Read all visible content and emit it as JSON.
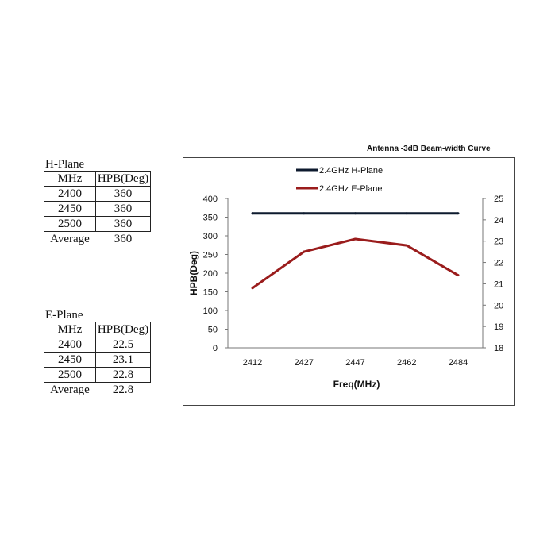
{
  "h_plane": {
    "title": "H-Plane",
    "headers": [
      "MHz",
      "HPB(Deg)"
    ],
    "rows": [
      [
        "2400",
        "360"
      ],
      [
        "2450",
        "360"
      ],
      [
        "2500",
        "360"
      ]
    ],
    "average_label": "Average",
    "average_value": "360"
  },
  "e_plane": {
    "title": "E-Plane",
    "headers": [
      "MHz",
      "HPB(Deg)"
    ],
    "rows": [
      [
        "2400",
        "22.5"
      ],
      [
        "2450",
        "23.1"
      ],
      [
        "2500",
        "22.8"
      ]
    ],
    "average_label": "Average",
    "average_value": "22.8"
  },
  "chart_data": {
    "type": "line",
    "title": "Antenna -3dB Beam-width Curve",
    "xlabel": "Freq(MHz)",
    "ylabel": "HPB(Deg)",
    "categories": [
      "2412",
      "2427",
      "2447",
      "2462",
      "2484"
    ],
    "ylim": [
      0,
      400
    ],
    "yticks": [
      "0",
      "50",
      "100",
      "150",
      "200",
      "250",
      "300",
      "350",
      "400"
    ],
    "y2lim": [
      18,
      25
    ],
    "y2ticks": [
      "18",
      "19",
      "20",
      "21",
      "22",
      "23",
      "24",
      "25"
    ],
    "grid": false,
    "legend_position": "top",
    "series": [
      {
        "name": "2.4GHz H-Plane",
        "axis": "left",
        "color": "#0d1a2e",
        "values": [
          360,
          360,
          360,
          360,
          360
        ]
      },
      {
        "name": "2.4GHz E-Plane",
        "axis": "right",
        "color": "#9a1c1c",
        "values": [
          20.8,
          22.5,
          23.1,
          22.8,
          21.4
        ]
      }
    ]
  }
}
